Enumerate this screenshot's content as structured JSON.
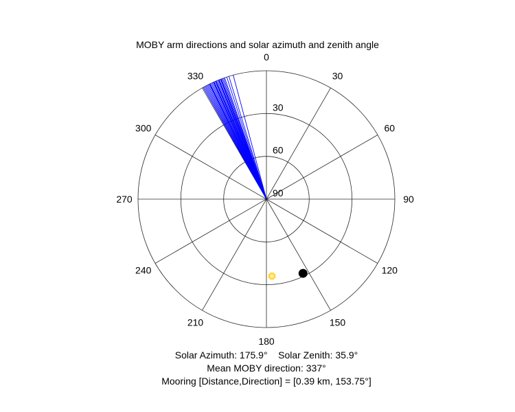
{
  "chart_data": {
    "type": "polar",
    "title": "MOBY arm directions and solar azimuth and zenith angle",
    "angle_ticks": [
      "0",
      "30",
      "60",
      "90",
      "120",
      "150",
      "180",
      "210",
      "240",
      "270",
      "300",
      "330"
    ],
    "angle_direction": "clockwise",
    "zero_at": "top",
    "radial_ticks": [
      "30",
      "60",
      "90"
    ],
    "radial_ticks_values": [
      30,
      60,
      90
    ],
    "radial_max": 90,
    "radial_direction": "center=90, edge=0",
    "radial_label_angle": 0,
    "series": [
      {
        "marker": "line",
        "color": "#0000ff",
        "angles_deg": [
          330.5,
          331,
          331.5,
          332,
          332.5,
          333,
          333.5,
          334,
          334.5,
          335,
          335.5,
          336,
          336.5,
          337,
          337.5,
          338,
          338.5,
          339,
          339.5,
          340,
          340.5,
          341,
          342,
          343,
          345,
          335.8,
          333.8,
          336.8,
          338.2,
          339.2
        ],
        "radius_outer": 90
      },
      {
        "marker": "dot",
        "color": "#000000",
        "angle_deg": 153.75,
        "radius_deg": 32
      },
      {
        "marker": "sun",
        "color": "#ffd700",
        "angle_deg": 175.9,
        "radius_deg": 35.9
      }
    ],
    "annotations": [
      "Solar Azimuth: 175.9°    Solar Zenith: 35.9°",
      "Mean MOBY direction: 337°",
      "Mooring [Distance,Direction] = [0.39 km, 153.75°]"
    ]
  },
  "texts": {
    "solar_line": "Solar Azimuth: 175.9°    Solar Zenith: 35.9°",
    "mean_line": "Mean MOBY direction: 337°",
    "mooring_line": "Mooring [Distance,Direction] = [0.39 km, 153.75°]"
  }
}
